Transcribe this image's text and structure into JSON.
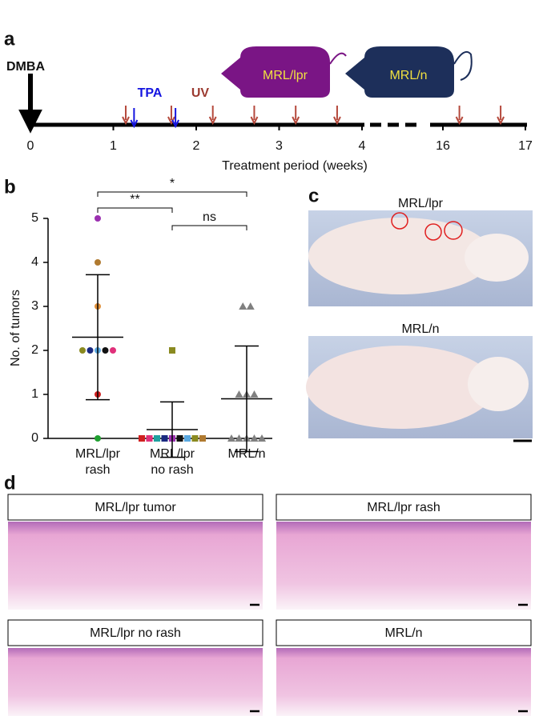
{
  "panel_a": {
    "label": "a",
    "dmba": "DMBA",
    "tpa": "TPA",
    "uv": "UV",
    "mice": [
      "MRL/lpr",
      "MRL/n"
    ],
    "ticks": [
      0,
      1,
      2,
      3,
      4,
      16,
      17
    ],
    "tpa_weeks": [
      1.25,
      1.75
    ],
    "uv_weeks": [
      1.15,
      1.7,
      2.2,
      2.7,
      3.2,
      3.7,
      16.2,
      16.7
    ],
    "xlabel": "Treatment period (weeks)"
  },
  "chart_data": {
    "type": "scatter",
    "label": "b",
    "ylabel": "No. of tumors",
    "categories": [
      [
        "MRL/lpr",
        "rash"
      ],
      [
        "MRL/lpr",
        "no rash"
      ],
      [
        "MRL/n"
      ]
    ],
    "groups": [
      {
        "marker": "circle",
        "values": [
          5,
          4,
          3,
          2,
          2,
          2,
          2,
          2,
          1,
          0
        ],
        "colors": [
          "#9b30b0",
          "#b07a30",
          "#e0903a",
          "#8a8a20",
          "#1a2a80",
          "#5aa8e0",
          "#111111",
          "#e0307a",
          "#d02020",
          "#20a030"
        ],
        "mean": 2.3,
        "sd": 1.42
      },
      {
        "marker": "square",
        "values": [
          2,
          0,
          0,
          0,
          0,
          0,
          0,
          0,
          0,
          0
        ],
        "colors": [
          "#8a8a20",
          "#d02020",
          "#e0307a",
          "#20a0a0",
          "#1a2a80",
          "#9b30b0",
          "#111111",
          "#5aa8e0",
          "#8a8a20",
          "#b07a30"
        ],
        "mean": 0.2,
        "sd": 0.63
      },
      {
        "marker": "triangle",
        "values": [
          3,
          3,
          1,
          1,
          1,
          0,
          0,
          0,
          0,
          0
        ],
        "colors": [
          "#808080",
          "#808080",
          "#808080",
          "#808080",
          "#808080",
          "#808080",
          "#808080",
          "#808080",
          "#808080",
          "#808080"
        ],
        "mean": 0.9,
        "sd": 1.2
      }
    ],
    "ylim": [
      0,
      5
    ],
    "yticks": [
      0,
      1,
      2,
      3,
      4,
      5
    ],
    "comparisons": [
      {
        "from": 0,
        "to": 2,
        "label": "*"
      },
      {
        "from": 0,
        "to": 1,
        "label": "**"
      },
      {
        "from": 1,
        "to": 2,
        "label": "ns"
      }
    ]
  },
  "panel_c": {
    "label": "c",
    "titles": [
      "MRL/lpr",
      "MRL/n"
    ]
  },
  "panel_d": {
    "label": "d",
    "titles": [
      "MRL/lpr tumor",
      "MRL/lpr rash",
      "MRL/lpr no rash",
      "MRL/n"
    ]
  }
}
